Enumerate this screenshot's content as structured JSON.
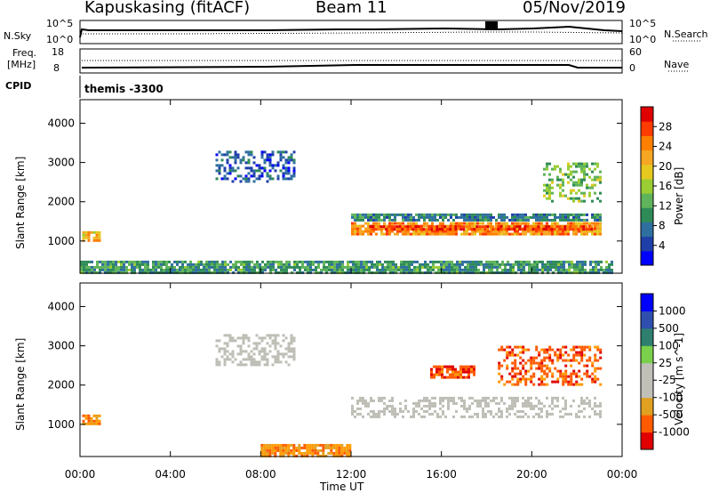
{
  "header": {
    "station": "Kapuskasing (fitACF)",
    "beam": "Beam 11",
    "date": "05/Nov/2019"
  },
  "summary_labels": {
    "nsky": "N.Sky",
    "nsearch": "N.Search",
    "freq_line1": "Freq.",
    "freq_line2": "[MHz]",
    "cpid": "CPID",
    "nave": "Nave",
    "cpid_value": "themis -3300"
  },
  "summary_ticks": {
    "noise_top": "10^5",
    "noise_bottom": "10^0",
    "freq_top": "18",
    "freq_bottom": "8",
    "nave_top": "60",
    "nave_bottom": "0"
  },
  "colors": {
    "power_scale": [
      "#0000ff",
      "#1f3fa8",
      "#2f6f9f",
      "#2e8b57",
      "#5fb35a",
      "#9acd32",
      "#e6c81f",
      "#f5a623",
      "#ff7f00",
      "#ff3b00",
      "#e00000"
    ],
    "velocity_scale": [
      "#e00000",
      "#ff5a00",
      "#ff9a00",
      "#e0a020",
      "#c0c0b8",
      "#c0c0b8",
      "#7ad04a",
      "#2e9b4a",
      "#2f7f6f",
      "#2f4faf",
      "#0000ff"
    ],
    "ground_scatter": "#bebeb6"
  },
  "chart_data": [
    {
      "type": "heatmap",
      "panel": "power",
      "ylabel": "Slant Range [km]",
      "xlabel": "Time UT",
      "colorbar_label": "Power [dB]",
      "colorbar_ticks": [
        "4",
        "8",
        "12",
        "16",
        "20",
        "24",
        "28"
      ],
      "colorbar_range": [
        0,
        32
      ],
      "x_ticks": [
        "00:00",
        "04:00",
        "08:00",
        "12:00",
        "16:00",
        "20:00",
        "00:00"
      ],
      "x_range_hours": [
        0,
        24
      ],
      "y_ticks": [
        1000,
        2000,
        3000,
        4000
      ],
      "y_range": [
        180,
        4600
      ],
      "regions": [
        {
          "t": [
            12.0,
            23.0
          ],
          "r": [
            1200,
            1480
          ],
          "level": 24
        },
        {
          "t": [
            12.8,
            22.6
          ],
          "r": [
            1300,
            1400
          ],
          "level": 29
        },
        {
          "t": [
            12.0,
            23.0
          ],
          "r": [
            1500,
            1700
          ],
          "level": 8
        },
        {
          "t": [
            6.0,
            9.5
          ],
          "r": [
            2500,
            3300
          ],
          "level": 5
        },
        {
          "t": [
            20.5,
            23.0
          ],
          "r": [
            2000,
            3000
          ],
          "level": 14
        },
        {
          "t": [
            0.1,
            0.9
          ],
          "r": [
            1000,
            1250
          ],
          "level": 22
        },
        {
          "t": [
            0.0,
            23.5
          ],
          "r": [
            180,
            500
          ],
          "level": 10
        }
      ]
    },
    {
      "type": "heatmap",
      "panel": "velocity",
      "ylabel": "Slant Range [km]",
      "xlabel": "Time UT",
      "colorbar_label": "Velocity [m s^-1]",
      "colorbar_ticks": [
        "1000",
        "500",
        "100",
        "25",
        "-25",
        "-100",
        "-500",
        "-1000"
      ],
      "x_ticks": [
        "00:00",
        "04:00",
        "08:00",
        "12:00",
        "16:00",
        "20:00",
        "00:00"
      ],
      "x_range_hours": [
        0,
        24
      ],
      "y_ticks": [
        1000,
        2000,
        3000,
        4000
      ],
      "y_range": [
        180,
        4600
      ],
      "regions": [
        {
          "t": [
            12.0,
            23.0
          ],
          "r": [
            1200,
            1700
          ],
          "level": "ground"
        },
        {
          "t": [
            6.0,
            9.5
          ],
          "r": [
            2500,
            3300
          ],
          "level": "ground"
        },
        {
          "t": [
            18.5,
            23.0
          ],
          "r": [
            2000,
            3000
          ],
          "level": -300
        },
        {
          "t": [
            15.5,
            17.5
          ],
          "r": [
            2200,
            2500
          ],
          "level": -300
        },
        {
          "t": [
            8.0,
            12.0
          ],
          "r": [
            180,
            500
          ],
          "level": -150
        },
        {
          "t": [
            0.1,
            0.9
          ],
          "r": [
            1000,
            1250
          ],
          "level": -200
        }
      ]
    }
  ]
}
